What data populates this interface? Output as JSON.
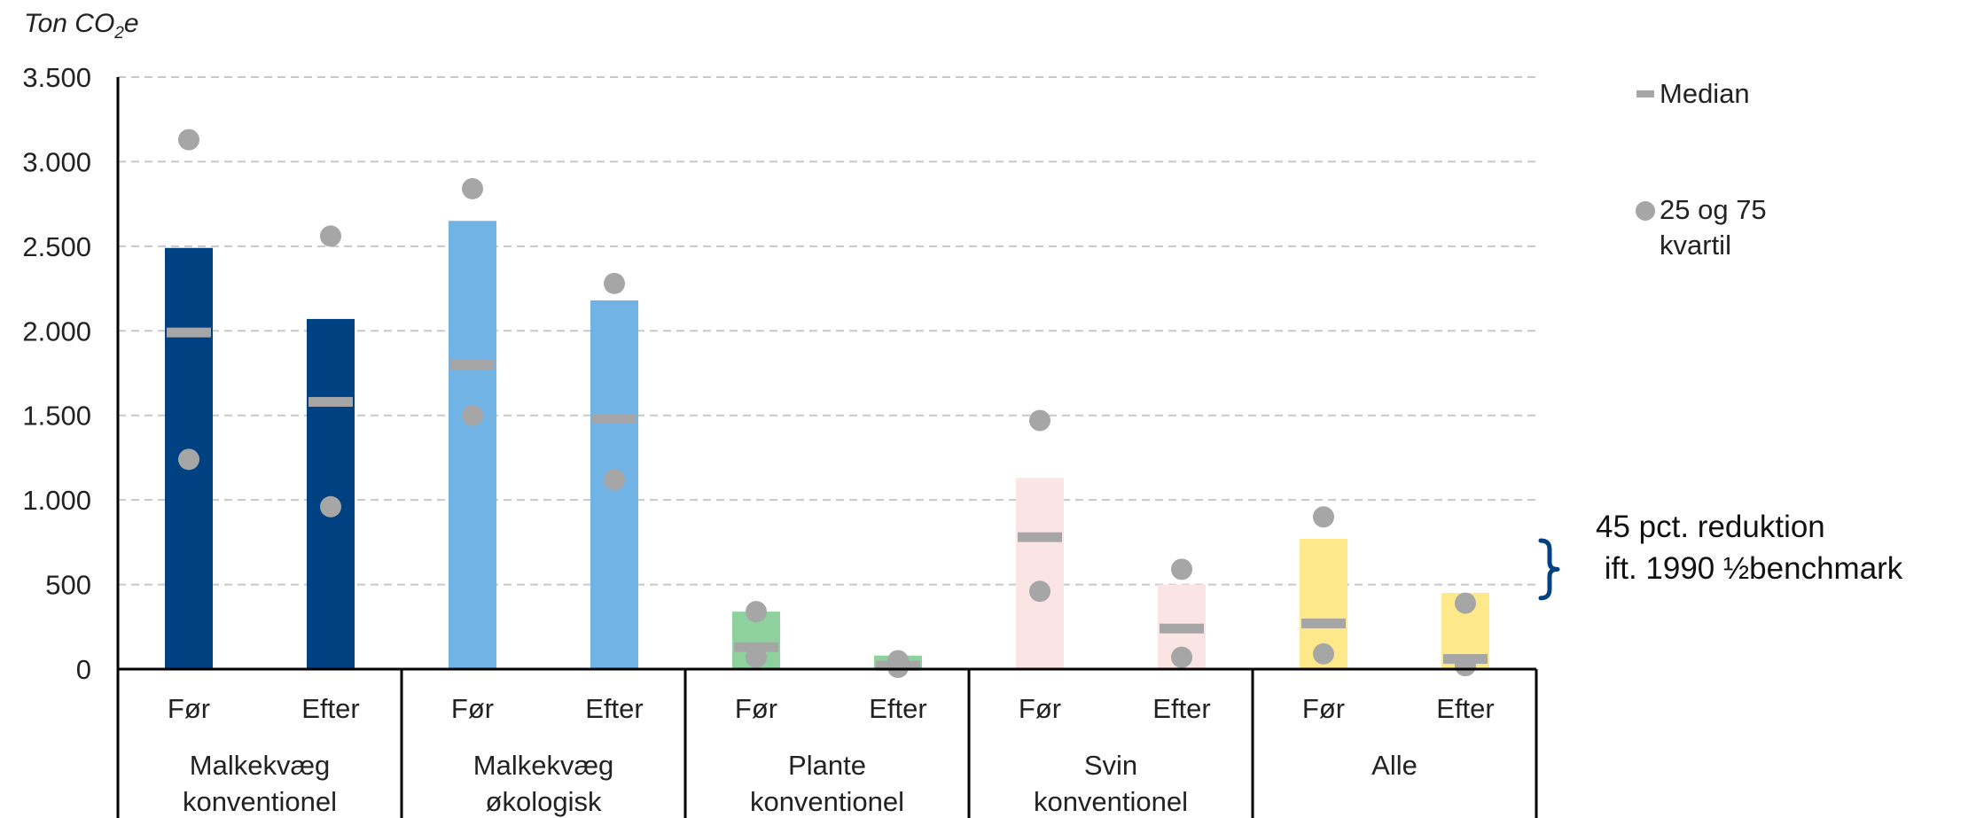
{
  "chart_data": {
    "type": "bar",
    "ylabel_prefix": "Ton CO",
    "ylabel_sub": "2",
    "ylabel_suffix": "e",
    "ylim": [
      0,
      3500
    ],
    "yticks": [
      0,
      500,
      1000,
      1500,
      2000,
      2500,
      3000,
      3500
    ],
    "ytick_labels": [
      "0",
      "500",
      "1.000",
      "1.500",
      "2.000",
      "2.500",
      "3.000",
      "3.500"
    ],
    "grid": true,
    "legend_position": "right",
    "legend": {
      "median_label": "Median",
      "quartile_label_line1": "25 og 75",
      "quartile_label_line2": "kvartil"
    },
    "groups": [
      {
        "label_line1": "Malkekvæg",
        "label_line2": "konventionel",
        "color": "#004181",
        "bars": [
          {
            "label": "Før",
            "mean": 2490,
            "median": 1990,
            "q25": 1240,
            "q75": 3130
          },
          {
            "label": "Efter",
            "mean": 2070,
            "median": 1580,
            "q25": 960,
            "q75": 2560
          }
        ]
      },
      {
        "label_line1": "Malkekvæg",
        "label_line2": "økologisk",
        "color": "#72b3e6",
        "bars": [
          {
            "label": "Før",
            "mean": 2650,
            "median": 1800,
            "q25": 1500,
            "q75": 2840
          },
          {
            "label": "Efter",
            "mean": 2180,
            "median": 1480,
            "q25": 1120,
            "q75": 2280
          }
        ]
      },
      {
        "label_line1": "Plante",
        "label_line2": "konventionel",
        "color": "#8fd19e",
        "bars": [
          {
            "label": "Før",
            "mean": 340,
            "median": 130,
            "q25": 70,
            "q75": 340
          },
          {
            "label": "Efter",
            "mean": 80,
            "median": 20,
            "q25": 10,
            "q75": 50
          }
        ]
      },
      {
        "label_line1": "Svin",
        "label_line2": "konventionel",
        "color": "#fbe4e4",
        "bars": [
          {
            "label": "Før",
            "mean": 1130,
            "median": 780,
            "q25": 460,
            "q75": 1470
          },
          {
            "label": "Efter",
            "mean": 500,
            "median": 240,
            "q25": 70,
            "q75": 590
          }
        ]
      },
      {
        "label_line1": "Alle",
        "label_line2": "",
        "color": "#fde98a",
        "bars": [
          {
            "label": "Før",
            "mean": 770,
            "median": 270,
            "q25": 90,
            "q75": 900
          },
          {
            "label": "Efter",
            "mean": 450,
            "median": 60,
            "q25": 20,
            "q75": 390
          }
        ]
      }
    ],
    "annotation": {
      "line1": "45 pct. reduktion",
      "line2": " ift. 1990 ½benchmark",
      "bracket_color": "#004181",
      "range": [
        420,
        760
      ]
    }
  }
}
